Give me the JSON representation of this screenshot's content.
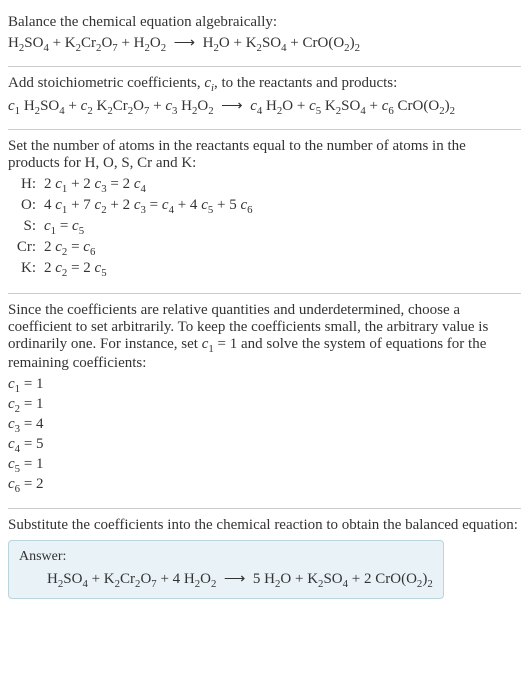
{
  "section1": {
    "title": "Balance the chemical equation algebraically:",
    "eq": "H<span class=\"sub\">2</span>SO<span class=\"sub\">4</span> + K<span class=\"sub\">2</span>Cr<span class=\"sub\">2</span>O<span class=\"sub\">7</span> + H<span class=\"sub\">2</span>O<span class=\"sub\">2</span> &nbsp;⟶&nbsp; H<span class=\"sub\">2</span>O + K<span class=\"sub\">2</span>SO<span class=\"sub\">4</span> + CrO(O<span class=\"sub\">2</span>)<span class=\"sub\">2</span>"
  },
  "section2": {
    "title": "Add stoichiometric coefficients, <span class=\"var\">c</span><span class=\"subi\">i</span>, to the reactants and products:",
    "eq": "<span class=\"var\">c</span><span class=\"sub\">1</span> H<span class=\"sub\">2</span>SO<span class=\"sub\">4</span> + <span class=\"var\">c</span><span class=\"sub\">2</span> K<span class=\"sub\">2</span>Cr<span class=\"sub\">2</span>O<span class=\"sub\">7</span> + <span class=\"var\">c</span><span class=\"sub\">3</span> H<span class=\"sub\">2</span>O<span class=\"sub\">2</span> &nbsp;⟶&nbsp; <span class=\"var\">c</span><span class=\"sub\">4</span> H<span class=\"sub\">2</span>O + <span class=\"var\">c</span><span class=\"sub\">5</span> K<span class=\"sub\">2</span>SO<span class=\"sub\">4</span> + <span class=\"var\">c</span><span class=\"sub\">6</span> CrO(O<span class=\"sub\">2</span>)<span class=\"sub\">2</span>"
  },
  "section3": {
    "title": "Set the number of atoms in the reactants equal to the number of atoms in the products for H, O, S, Cr and K:",
    "rows": [
      {
        "el": "H:",
        "rhs": "2 <span class=\"var\">c</span><span class=\"sub\">1</span> + 2 <span class=\"var\">c</span><span class=\"sub\">3</span> = 2 <span class=\"var\">c</span><span class=\"sub\">4</span>"
      },
      {
        "el": "O:",
        "rhs": "4 <span class=\"var\">c</span><span class=\"sub\">1</span> + 7 <span class=\"var\">c</span><span class=\"sub\">2</span> + 2 <span class=\"var\">c</span><span class=\"sub\">3</span> = <span class=\"var\">c</span><span class=\"sub\">4</span> + 4 <span class=\"var\">c</span><span class=\"sub\">5</span> + 5 <span class=\"var\">c</span><span class=\"sub\">6</span>"
      },
      {
        "el": "S:",
        "rhs": "<span class=\"var\">c</span><span class=\"sub\">1</span> = <span class=\"var\">c</span><span class=\"sub\">5</span>"
      },
      {
        "el": "Cr:",
        "rhs": "2 <span class=\"var\">c</span><span class=\"sub\">2</span> = <span class=\"var\">c</span><span class=\"sub\">6</span>"
      },
      {
        "el": "K:",
        "rhs": "2 <span class=\"var\">c</span><span class=\"sub\">2</span> = 2 <span class=\"var\">c</span><span class=\"sub\">5</span>"
      }
    ]
  },
  "section4": {
    "title": "Since the coefficients are relative quantities and underdetermined, choose a coefficient to set arbitrarily. To keep the coefficients small, the arbitrary value is ordinarily one. For instance, set <span class=\"var\">c</span><span class=\"sub\">1</span> = 1 and solve the system of equations for the remaining coefficients:",
    "coefs": [
      "<span class=\"var\">c</span><span class=\"sub\">1</span> = 1",
      "<span class=\"var\">c</span><span class=\"sub\">2</span> = 1",
      "<span class=\"var\">c</span><span class=\"sub\">3</span> = 4",
      "<span class=\"var\">c</span><span class=\"sub\">4</span> = 5",
      "<span class=\"var\">c</span><span class=\"sub\">5</span> = 1",
      "<span class=\"var\">c</span><span class=\"sub\">6</span> = 2"
    ]
  },
  "section5": {
    "title": "Substitute the coefficients into the chemical reaction to obtain the balanced equation:",
    "answer_label": "Answer:",
    "answer_eq": "H<span class=\"sub\">2</span>SO<span class=\"sub\">4</span> + K<span class=\"sub\">2</span>Cr<span class=\"sub\">2</span>O<span class=\"sub\">7</span> + 4 H<span class=\"sub\">2</span>O<span class=\"sub\">2</span> &nbsp;⟶&nbsp; 5 H<span class=\"sub\">2</span>O + K<span class=\"sub\">2</span>SO<span class=\"sub\">4</span> + 2 CrO(O<span class=\"sub\">2</span>)<span class=\"sub\">2</span>"
  },
  "colors": {
    "text": "#333333",
    "border": "#cccccc",
    "answer_bg": "#e8f2f7",
    "answer_border": "#bcd4de"
  }
}
